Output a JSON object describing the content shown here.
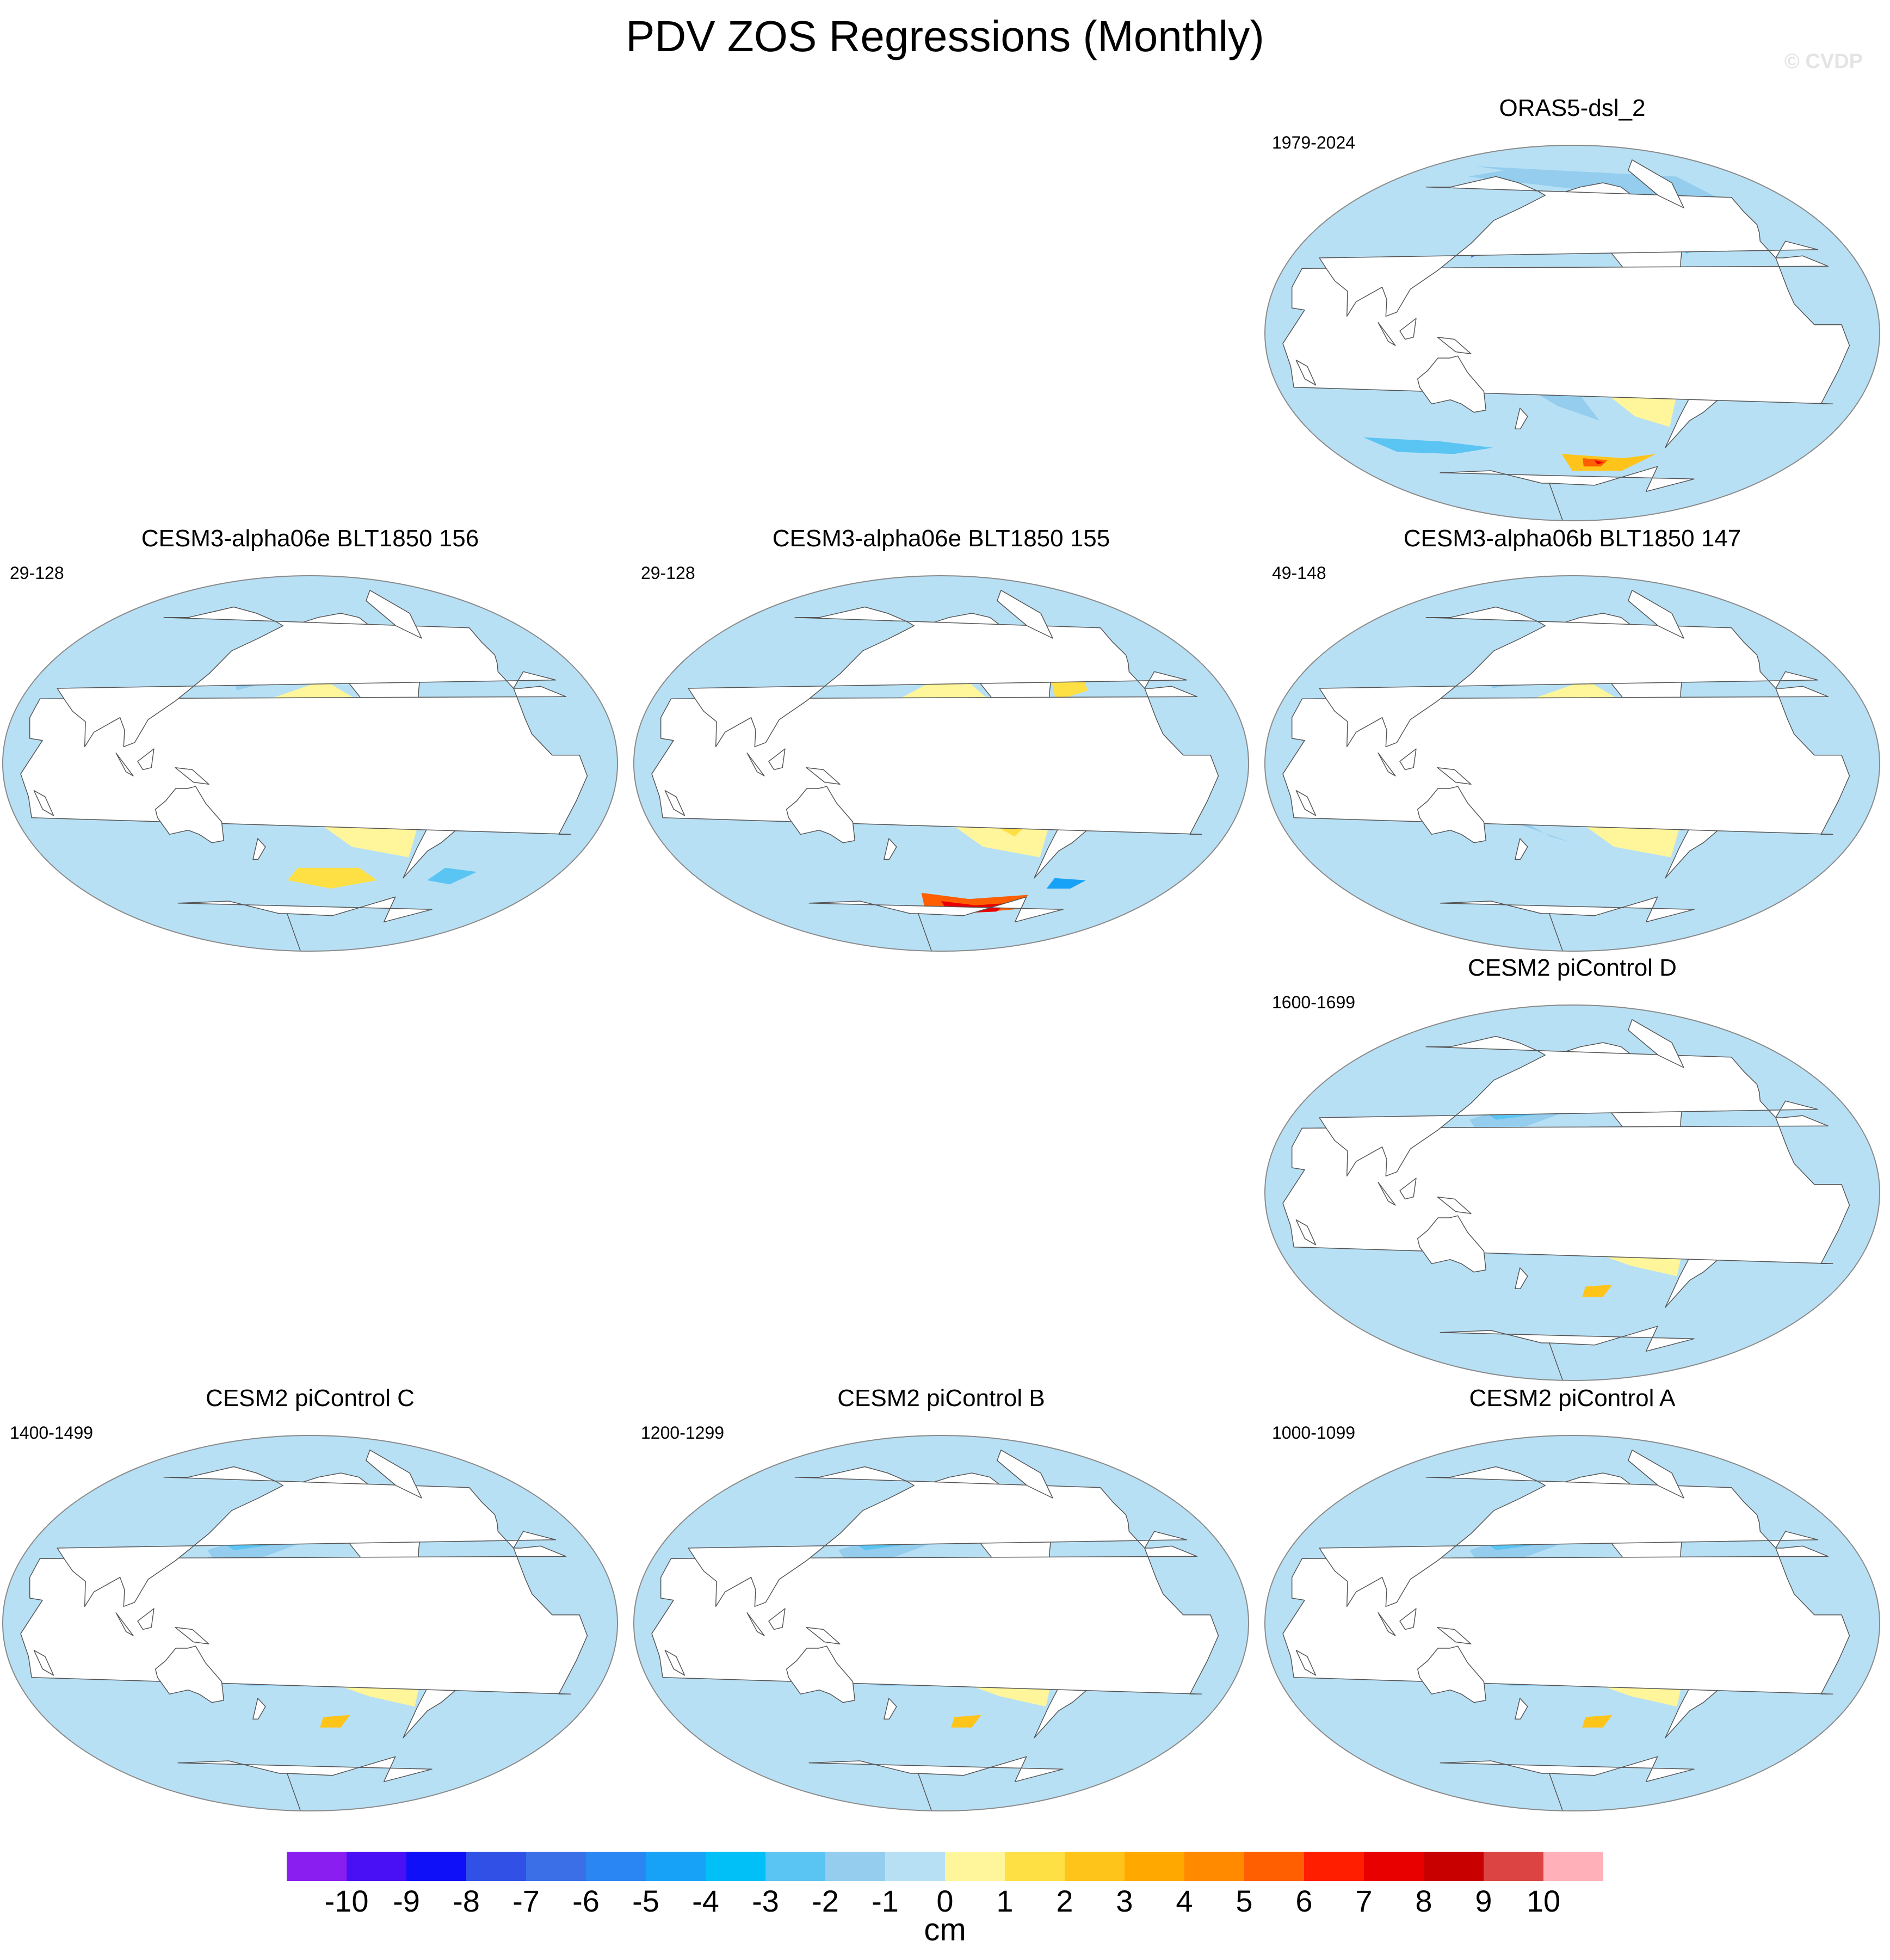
{
  "title": "PDV ZOS Regressions (Monthly)",
  "watermark": "© CVDP",
  "colorbar": {
    "unit": "cm",
    "labels": [
      "-10",
      "-9",
      "-8",
      "-7",
      "-6",
      "-5",
      "-4",
      "-3",
      "-2",
      "-1",
      "0",
      "1",
      "2",
      "3",
      "4",
      "5",
      "6",
      "7",
      "8",
      "9",
      "10"
    ],
    "colors": [
      "#8a1ef0",
      "#4a10f5",
      "#1010f8",
      "#3050e6",
      "#3a6fe8",
      "#2a86f2",
      "#18a2f7",
      "#00c0f7",
      "#5ac4f2",
      "#94cdee",
      "#b8e0f5",
      "#fff59a",
      "#ffe044",
      "#ffc41a",
      "#ffa800",
      "#ff8a00",
      "#ff5f00",
      "#ff1e00",
      "#e80000",
      "#c80000",
      "#dc4444",
      "#ffb0b8"
    ]
  },
  "chart_data": [
    {
      "type": "heatmap",
      "title": "ORAS5-dsl_2",
      "period": "1979-2024",
      "variable": "ZOS regression on PDV",
      "units": "cm",
      "range": [
        -10,
        10
      ]
    },
    {
      "type": "heatmap",
      "title": "CESM3-alpha06e BLT1850 156",
      "period": "29-128",
      "variable": "ZOS regression on PDV",
      "units": "cm",
      "range": [
        -10,
        10
      ]
    },
    {
      "type": "heatmap",
      "title": "CESM3-alpha06e BLT1850 155",
      "period": "29-128",
      "variable": "ZOS regression on PDV",
      "units": "cm",
      "range": [
        -10,
        10
      ]
    },
    {
      "type": "heatmap",
      "title": "CESM3-alpha06b BLT1850 147",
      "period": "49-148",
      "variable": "ZOS regression on PDV",
      "units": "cm",
      "range": [
        -10,
        10
      ]
    },
    {
      "type": "heatmap",
      "title": "CESM2 piControl D",
      "period": "1600-1699",
      "variable": "ZOS regression on PDV",
      "units": "cm",
      "range": [
        -10,
        10
      ]
    },
    {
      "type": "heatmap",
      "title": "CESM2 piControl C",
      "period": "1400-1499",
      "variable": "ZOS regression on PDV",
      "units": "cm",
      "range": [
        -10,
        10
      ]
    },
    {
      "type": "heatmap",
      "title": "CESM2 piControl B",
      "period": "1200-1299",
      "variable": "ZOS regression on PDV",
      "units": "cm",
      "range": [
        -10,
        10
      ]
    },
    {
      "type": "heatmap",
      "title": "CESM2 piControl A",
      "period": "1000-1099",
      "variable": "ZOS regression on PDV",
      "units": "cm",
      "range": [
        -10,
        10
      ]
    }
  ]
}
